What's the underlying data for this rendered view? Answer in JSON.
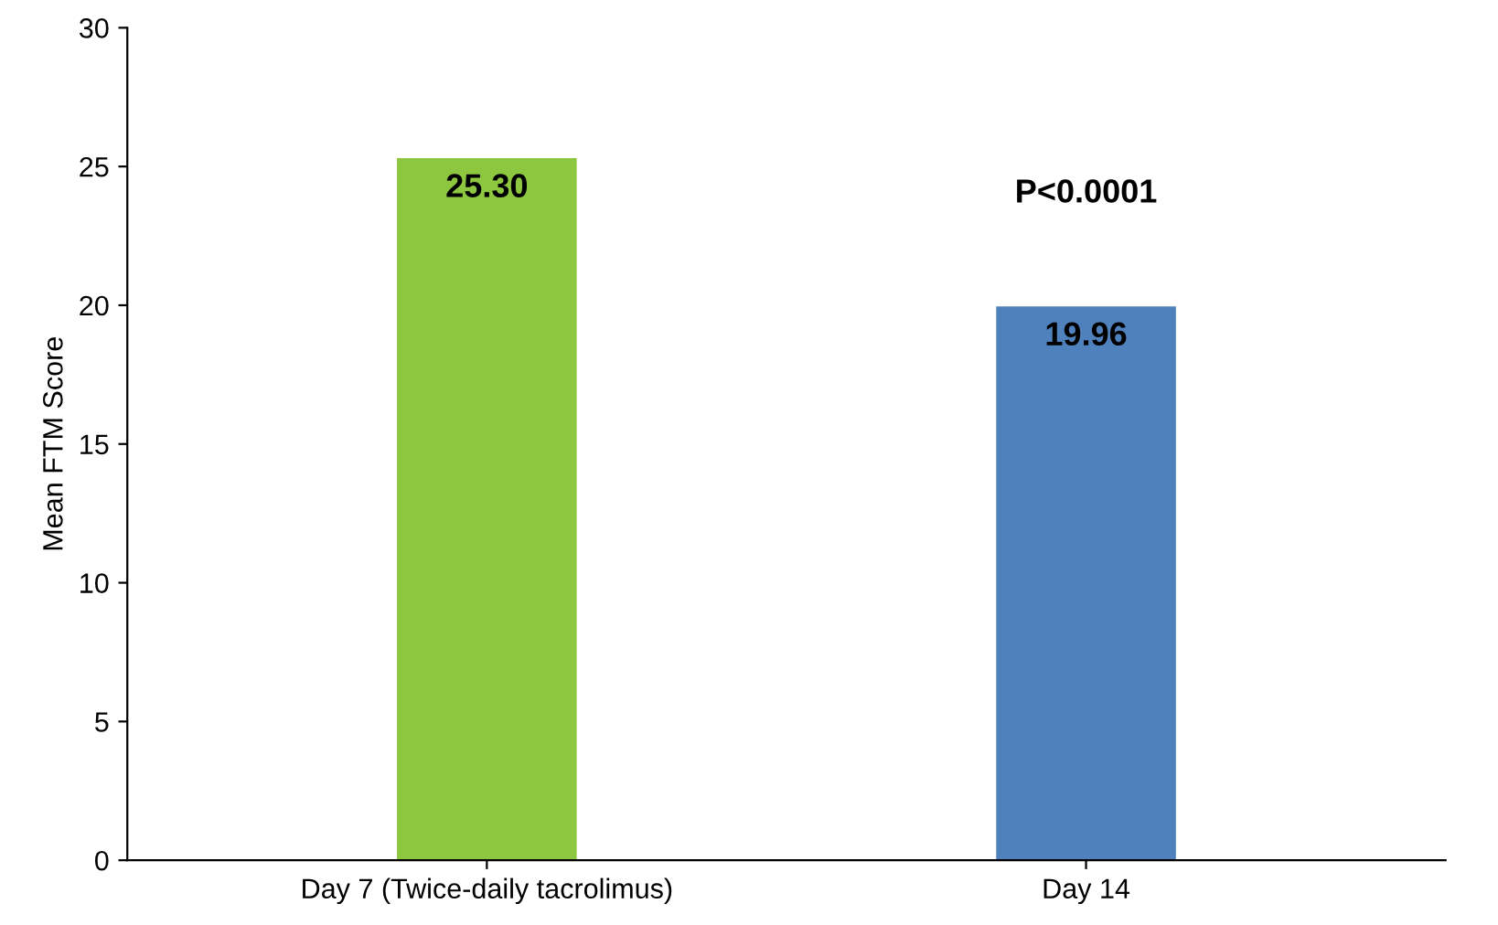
{
  "chart_data": {
    "type": "bar",
    "ylabel": "Mean FTM Score",
    "categories": [
      "Day 7 (Twice-daily tacrolimus)",
      "Day 14"
    ],
    "values": [
      25.3,
      19.96
    ],
    "colors": [
      "#8dc63f",
      "#4f81bd"
    ],
    "value_labels": [
      "25.30",
      "19.96"
    ],
    "annotations": [
      "P<0.0001"
    ],
    "ylim": [
      0,
      30
    ],
    "yticks": [
      0,
      5,
      10,
      15,
      20,
      25,
      30
    ],
    "grid": false
  }
}
